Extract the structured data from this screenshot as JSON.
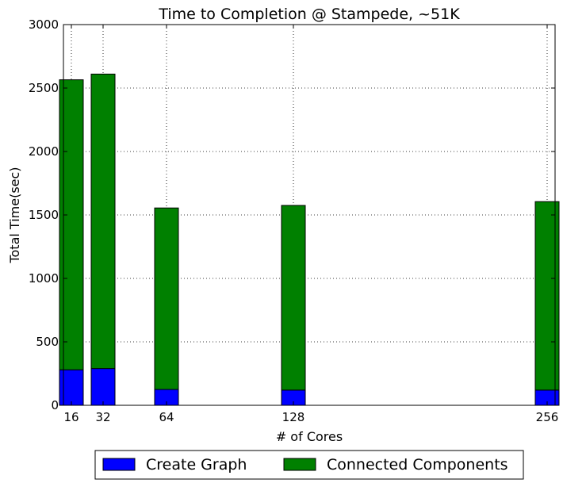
{
  "chart_data": {
    "type": "bar",
    "stacked": true,
    "title": "Time to Completion @ Stampede, ~51K",
    "xlabel": "# of Cores",
    "ylabel": "Total Time(sec)",
    "x": [
      16,
      32,
      64,
      128,
      256
    ],
    "x_tick_labels": [
      "16",
      "32",
      "64",
      "128",
      "256"
    ],
    "xlim": [
      12,
      260
    ],
    "ylim": [
      0,
      3000
    ],
    "y_ticks": [
      0,
      500,
      1000,
      1500,
      2000,
      2500,
      3000
    ],
    "bar_width": 12,
    "grid": true,
    "legend_position": "below",
    "series": [
      {
        "name": "Create Graph",
        "color": "#0000ff",
        "values": [
          280,
          290,
          125,
          120,
          120
        ]
      },
      {
        "name": "Connected Components",
        "color": "#008000",
        "values": [
          2285,
          2320,
          1430,
          1455,
          1485
        ]
      }
    ]
  }
}
